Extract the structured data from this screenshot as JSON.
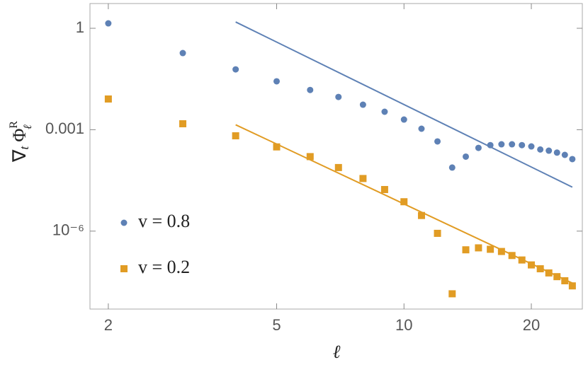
{
  "chart_data": {
    "type": "scatter",
    "x_label": "ℓ",
    "y_label": {
      "nabla": "∇",
      "sub": "t",
      "symbol": "Φ",
      "sup": "R",
      "index": "ℓ"
    },
    "xscale": "log",
    "yscale": "log",
    "xlim": [
      1.81,
      26.4
    ],
    "ylim": [
      4.95e-09,
      5.4
    ],
    "xticks": [
      2,
      5,
      10,
      20
    ],
    "yticks": [
      1,
      0.001,
      {
        "value": 1e-06,
        "label": "10⁻⁶"
      }
    ],
    "legend": "lower left",
    "series": [
      {
        "name": "v = 0.8",
        "color": "#5e81b5",
        "marker": "circle",
        "x": [
          2,
          3,
          4,
          5,
          6,
          7,
          8,
          9,
          10,
          11,
          12,
          13,
          14,
          15,
          16,
          17,
          18,
          19,
          20,
          21,
          22,
          23,
          24,
          25
        ],
        "values": [
          1.4,
          0.185,
          0.061,
          0.027,
          0.015,
          0.0093,
          0.0055,
          0.0034,
          0.002,
          0.00107,
          0.00045,
          7.6e-05,
          0.00016,
          0.00029,
          0.00035,
          0.00037,
          0.00037,
          0.00035,
          0.00032,
          0.00026,
          0.00024,
          0.00021,
          0.00018,
          0.000135
        ]
      },
      {
        "name": "v = 0.2",
        "color": "#e19c24",
        "marker": "square",
        "x": [
          2,
          3,
          4,
          5,
          6,
          7,
          8,
          9,
          10,
          11,
          12,
          13,
          14,
          15,
          16,
          17,
          18,
          19,
          20,
          21,
          22,
          23,
          24,
          25
        ],
        "values": [
          0.0081,
          0.0015,
          0.00066,
          0.00031,
          0.00016,
          7.6e-05,
          3.6e-05,
          1.7e-05,
          7.4e-06,
          2.9e-06,
          8.6e-07,
          1.4e-08,
          2.8e-07,
          3.2e-07,
          2.9e-07,
          2.5e-07,
          1.9e-07,
          1.4e-07,
          1e-07,
          7.7e-08,
          5.8e-08,
          4.5e-08,
          3.4e-08,
          2.4e-08
        ]
      }
    ],
    "fits": [
      {
        "color": "#5e81b5",
        "x": [
          4,
          25
        ],
        "values": [
          1.54,
          2e-05
        ]
      },
      {
        "color": "#e19c24",
        "x": [
          4,
          25
        ],
        "values": [
          0.0014,
          2.9e-08
        ]
      }
    ]
  }
}
